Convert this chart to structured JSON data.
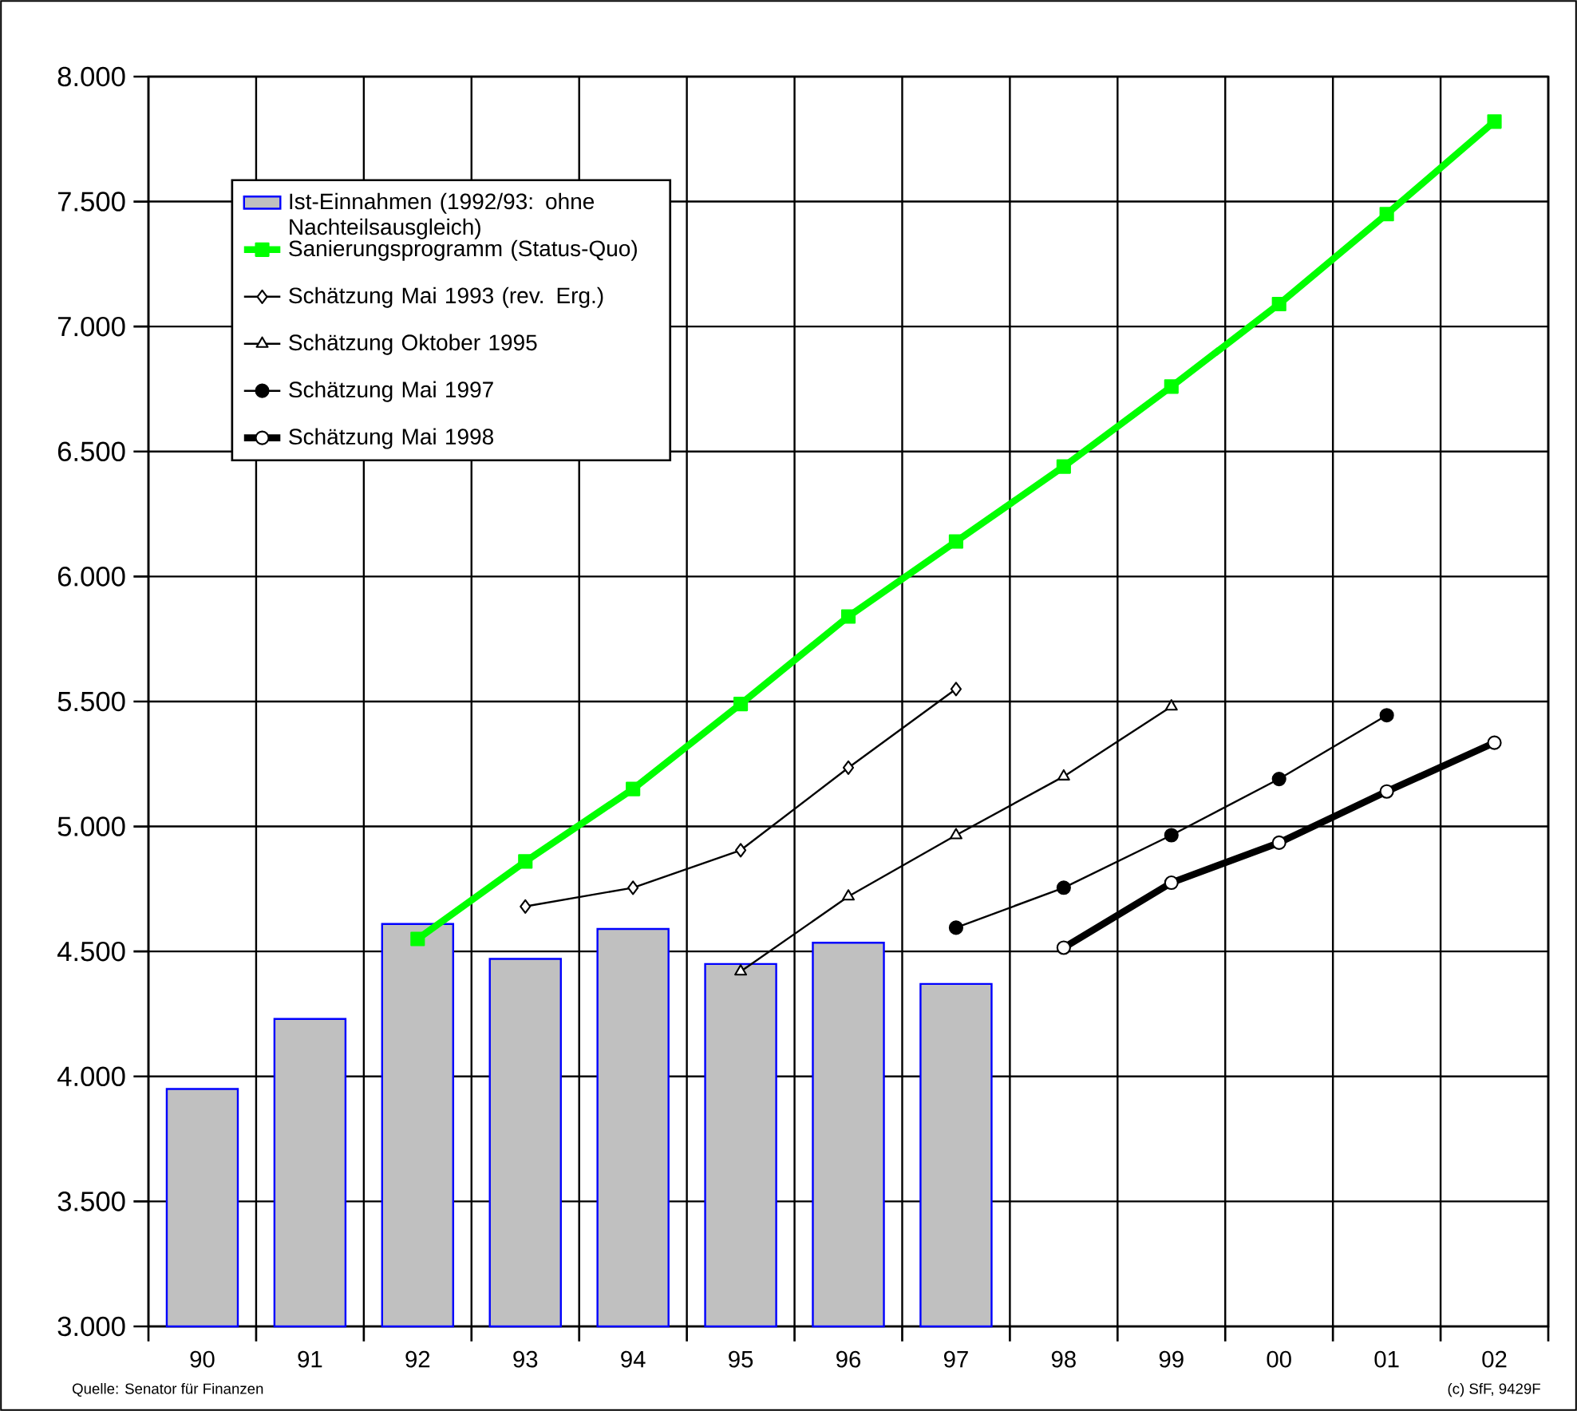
{
  "chart_data": {
    "type": "bar",
    "categories": [
      "90",
      "91",
      "92",
      "93",
      "94",
      "95",
      "96",
      "97",
      "98",
      "99",
      "00",
      "01",
      "02"
    ],
    "ylim": [
      3000,
      8000
    ],
    "yticks": [
      {
        "value": 3000,
        "label": "3.000"
      },
      {
        "value": 3500,
        "label": "3.500"
      },
      {
        "value": 4000,
        "label": "4.000"
      },
      {
        "value": 4500,
        "label": "4.500"
      },
      {
        "value": 5000,
        "label": "5.000"
      },
      {
        "value": 5500,
        "label": "5.500"
      },
      {
        "value": 6000,
        "label": "6.000"
      },
      {
        "value": 6500,
        "label": "6.500"
      },
      {
        "value": 7000,
        "label": "7.000"
      },
      {
        "value": 7500,
        "label": "7.500"
      },
      {
        "value": 8000,
        "label": "8.000"
      }
    ],
    "grid": true,
    "legend": "top left",
    "series": [
      {
        "name": "Ist-Einnahmen (1992/93: ohne Nachteilsausgleich)",
        "color": "#c0c0c0",
        "values": [
          3950,
          4230,
          4610,
          4470,
          4590,
          4450,
          4535,
          4370,
          null,
          null,
          null,
          null,
          null
        ]
      },
      {
        "name": "Sanierungsprogramm (Status-Quo)",
        "type": "line",
        "color": "#00ff00",
        "marker": "square",
        "values": [
          null,
          null,
          4550,
          4860,
          5150,
          5490,
          5840,
          6140,
          6440,
          6760,
          7090,
          7450,
          7820
        ]
      },
      {
        "name": "Schätzung Mai 1993 (rev. Erg.)",
        "type": "line",
        "color": "#000000",
        "marker": "diamond",
        "values": [
          null,
          null,
          null,
          4680,
          4755,
          4905,
          5235,
          5550,
          null,
          null,
          null,
          null,
          null
        ]
      },
      {
        "name": "Schätzung Oktober 1995",
        "type": "line",
        "color": "#000000",
        "marker": "triangle",
        "values": [
          null,
          null,
          null,
          null,
          null,
          4420,
          4720,
          4965,
          5200,
          5480,
          null,
          null,
          null
        ]
      },
      {
        "name": "Schätzung Mai 1997",
        "type": "line",
        "color": "#000000",
        "marker": "circle",
        "values": [
          null,
          null,
          null,
          null,
          null,
          null,
          null,
          4595,
          4755,
          4965,
          5190,
          5445,
          null
        ]
      },
      {
        "name": "Schätzung Mai 1998",
        "type": "line",
        "color": "#000000",
        "marker": "circle",
        "values": [
          null,
          null,
          null,
          null,
          null,
          null,
          null,
          null,
          4515,
          4775,
          4935,
          5140,
          5335
        ]
      }
    ],
    "annotations": [
      "Quelle: Senator für Finanzen",
      "(c) SfF, 9429F"
    ]
  }
}
